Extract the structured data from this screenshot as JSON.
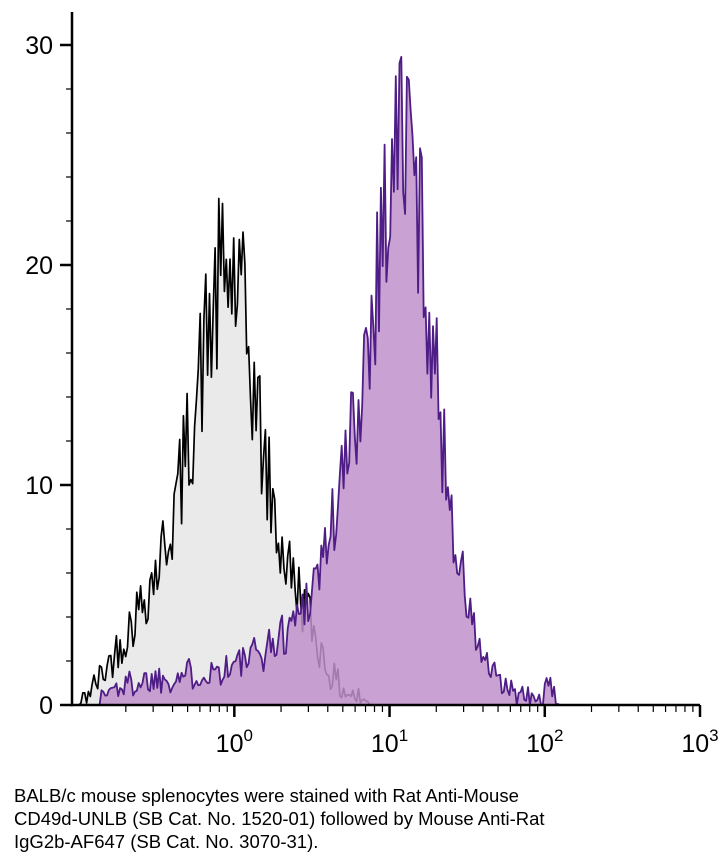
{
  "figure": {
    "caption_lines": [
      "BALB/c mouse splenocytes were stained with Rat Anti-Mouse",
      "CD49d-UNLB (SB Cat. No. 1520-01) followed by Mouse Anti-Rat",
      "IgG2b-AF647 (SB Cat. No. 3070-31)."
    ]
  },
  "chart_data": {
    "type": "area",
    "chart_kind": "flow-cytometry-overlay-histogram",
    "title": "",
    "xlabel": "",
    "ylabel": "",
    "x_scale": "log10",
    "xlim": [
      0.09,
      1000
    ],
    "ylim": [
      0,
      31.5
    ],
    "grid": false,
    "legend_position": "none",
    "axis_color": "#000000",
    "y_ticks": [
      0,
      10,
      20,
      30
    ],
    "x_major_ticks": [
      {
        "value": 1,
        "base": "10",
        "exponent": "0"
      },
      {
        "value": 10,
        "base": "10",
        "exponent": "1"
      },
      {
        "value": 100,
        "base": "10",
        "exponent": "2"
      },
      {
        "value": 1000,
        "base": "10",
        "exponent": "3"
      }
    ],
    "series": [
      {
        "name": "control-black-open-histogram",
        "stroke": "#000000",
        "fill": "#eaeaea",
        "fill_opacity": 1,
        "stroke_width": 1.7,
        "peak": {
          "x": 0.83,
          "y_envelope": 19.6,
          "y_max_spike": 25.5
        },
        "noise": {
          "frac": 0.2,
          "base": 0.5,
          "seed": 42
        },
        "envelope_log10x_y": [
          [
            -1.0,
            0.0
          ],
          [
            -0.95,
            0.5
          ],
          [
            -0.9,
            0.9
          ],
          [
            -0.85,
            1.4
          ],
          [
            -0.8,
            2.0
          ],
          [
            -0.75,
            2.6
          ],
          [
            -0.7,
            3.2
          ],
          [
            -0.65,
            3.9
          ],
          [
            -0.6,
            4.6
          ],
          [
            -0.55,
            5.4
          ],
          [
            -0.5,
            6.2
          ],
          [
            -0.45,
            7.2
          ],
          [
            -0.4,
            8.5
          ],
          [
            -0.35,
            10.0
          ],
          [
            -0.3,
            11.8
          ],
          [
            -0.25,
            13.8
          ],
          [
            -0.2,
            15.8
          ],
          [
            -0.15,
            17.4
          ],
          [
            -0.1,
            18.8
          ],
          [
            -0.05,
            19.6
          ],
          [
            0.0,
            19.2
          ],
          [
            0.05,
            17.8
          ],
          [
            0.1,
            15.6
          ],
          [
            0.15,
            13.2
          ],
          [
            0.2,
            10.8
          ],
          [
            0.25,
            8.8
          ],
          [
            0.3,
            7.2
          ],
          [
            0.35,
            6.2
          ],
          [
            0.4,
            5.4
          ],
          [
            0.45,
            4.6
          ],
          [
            0.5,
            3.6
          ],
          [
            0.55,
            2.6
          ],
          [
            0.6,
            1.7
          ],
          [
            0.65,
            1.1
          ],
          [
            0.7,
            0.7
          ],
          [
            0.8,
            0.3
          ],
          [
            0.9,
            0.0
          ]
        ]
      },
      {
        "name": "cd49d-stained-purple-filled-histogram",
        "stroke": "#4e1d86",
        "fill": "#c191cb",
        "fill_opacity": 0.85,
        "stroke_width": 1.8,
        "peak": {
          "x": 12,
          "y_envelope": 26.2,
          "y_max_spike": 29.7
        },
        "noise": {
          "frac": 0.18,
          "base": 0.5,
          "seed": 1337
        },
        "envelope_log10x_y": [
          [
            -0.88,
            0.0
          ],
          [
            -0.85,
            0.4
          ],
          [
            -0.8,
            0.7
          ],
          [
            -0.7,
            0.9
          ],
          [
            -0.6,
            1.1
          ],
          [
            -0.5,
            1.2
          ],
          [
            -0.4,
            1.3
          ],
          [
            -0.3,
            1.4
          ],
          [
            -0.2,
            1.5
          ],
          [
            -0.1,
            1.6
          ],
          [
            0.0,
            1.8
          ],
          [
            0.1,
            2.1
          ],
          [
            0.2,
            2.5
          ],
          [
            0.3,
            3.1
          ],
          [
            0.4,
            4.0
          ],
          [
            0.5,
            5.4
          ],
          [
            0.6,
            7.4
          ],
          [
            0.7,
            10.2
          ],
          [
            0.8,
            13.8
          ],
          [
            0.85,
            16.2
          ],
          [
            0.9,
            18.8
          ],
          [
            0.95,
            21.5
          ],
          [
            1.0,
            23.8
          ],
          [
            1.05,
            25.6
          ],
          [
            1.1,
            26.2
          ],
          [
            1.15,
            24.6
          ],
          [
            1.2,
            21.8
          ],
          [
            1.25,
            18.4
          ],
          [
            1.3,
            14.8
          ],
          [
            1.35,
            11.6
          ],
          [
            1.4,
            8.8
          ],
          [
            1.45,
            6.4
          ],
          [
            1.5,
            4.6
          ],
          [
            1.55,
            3.2
          ],
          [
            1.6,
            2.2
          ],
          [
            1.65,
            1.5
          ],
          [
            1.7,
            1.0
          ],
          [
            1.8,
            0.5
          ],
          [
            1.9,
            0.3
          ],
          [
            1.98,
            0.2
          ],
          [
            2.0,
            0.5
          ],
          [
            2.03,
            0.8
          ],
          [
            2.06,
            0.3
          ],
          [
            2.1,
            0.0
          ]
        ]
      }
    ]
  }
}
